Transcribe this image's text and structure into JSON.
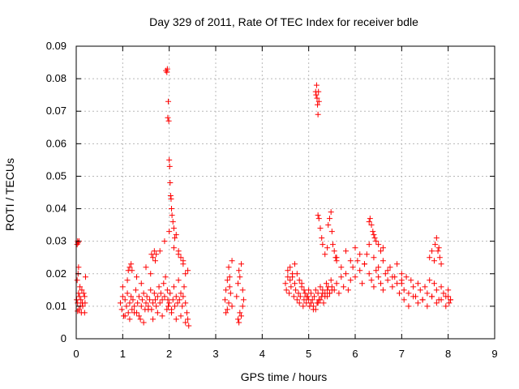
{
  "chart_data": {
    "type": "scatter",
    "title": "Day 329 of 2011, Rate Of TEC Index for receiver bdle",
    "xlabel": "GPS time / hours",
    "ylabel": "ROTI / TECUs",
    "xlim": [
      0,
      9
    ],
    "ylim": [
      0,
      0.09
    ],
    "x_ticks": [
      "0",
      "1",
      "2",
      "3",
      "4",
      "5",
      "6",
      "7",
      "8",
      "9"
    ],
    "y_ticks": [
      "0",
      "0.01",
      "0.02",
      "0.03",
      "0.04",
      "0.05",
      "0.06",
      "0.07",
      "0.08",
      "0.09"
    ],
    "grid": true,
    "legend": "none",
    "marker": "plus",
    "color": "#ff0000",
    "points": {
      "x": [
        0.01,
        0.02,
        0.03,
        0.04,
        0.05,
        0.06,
        0.07,
        0.08,
        0.09,
        0.1,
        0.11,
        0.12,
        0.13,
        0.14,
        0.16,
        0.18,
        0.2,
        0.02,
        0.03,
        0.04,
        0.06,
        0.05,
        0.03,
        0.18,
        0.19,
        0.95,
        0.98,
        1.0,
        1.02,
        1.05,
        1.08,
        1.1,
        1.12,
        1.15,
        1.18,
        1.2,
        1.22,
        1.25,
        1.28,
        1.3,
        1.32,
        1.35,
        1.38,
        1.4,
        1.42,
        1.45,
        1.48,
        1.5,
        1.52,
        1.55,
        1.58,
        1.6,
        1.62,
        1.65,
        1.68,
        1.7,
        1.72,
        1.75,
        1.78,
        1.8,
        1.82,
        1.85,
        1.88,
        1.9,
        1.92,
        1.96,
        1.97,
        1.98,
        2.0,
        2.02,
        2.05,
        2.08,
        2.1,
        2.12,
        2.15,
        2.18,
        2.2,
        2.22,
        2.25,
        2.28,
        2.3,
        2.32,
        2.35,
        2.38,
        2.4,
        2.42,
        1.93,
        1.95,
        1.96,
        1.98,
        1.97,
        1.99,
        2.0,
        2.01,
        2.02,
        2.03,
        2.04,
        2.05,
        2.06,
        2.08,
        2.1,
        2.12,
        2.15,
        2.2,
        2.25,
        2.3,
        2.35,
        1.0,
        1.1,
        1.2,
        1.3,
        1.4,
        1.5,
        1.6,
        1.7,
        1.8,
        1.9,
        2.0,
        2.1,
        2.2,
        2.3,
        2.4,
        1.05,
        1.15,
        1.25,
        1.35,
        1.45,
        1.55,
        1.65,
        1.75,
        1.85,
        1.95,
        2.05,
        2.15,
        2.25,
        2.35,
        1.12,
        1.15,
        1.18,
        1.62,
        1.65,
        1.68,
        1.72,
        3.2,
        3.22,
        3.25,
        3.28,
        3.3,
        3.32,
        3.35,
        3.22,
        3.25,
        3.28,
        3.3,
        3.35,
        3.45,
        3.48,
        3.5,
        3.52,
        3.55,
        3.58,
        3.6,
        3.48,
        3.5,
        3.52,
        3.55,
        3.58,
        4.5,
        4.52,
        4.55,
        4.58,
        4.6,
        4.62,
        4.65,
        4.68,
        4.7,
        4.72,
        4.75,
        4.78,
        4.8,
        4.82,
        4.85,
        4.88,
        4.9,
        4.92,
        4.95,
        4.98,
        5.0,
        5.02,
        5.05,
        5.08,
        5.1,
        5.12,
        5.15,
        5.18,
        5.2,
        5.22,
        5.25,
        5.28,
        5.3,
        5.32,
        5.35,
        5.38,
        5.4,
        5.42,
        5.45,
        5.48,
        5.5,
        4.55,
        4.6,
        4.65,
        4.7,
        4.75,
        4.8,
        4.85,
        4.9,
        4.95,
        5.0,
        5.05,
        5.1,
        5.15,
        5.2,
        5.25,
        5.3,
        5.35,
        5.4,
        5.45,
        5.5,
        5.15,
        5.16,
        5.17,
        5.18,
        5.19,
        5.2,
        5.21,
        5.22,
        5.2,
        5.22,
        5.25,
        5.28,
        5.3,
        5.35,
        5.4,
        5.42,
        5.45,
        5.48,
        5.5,
        5.52,
        5.55,
        5.58,
        5.6,
        5.55,
        5.6,
        5.65,
        5.7,
        5.75,
        5.8,
        5.85,
        5.9,
        5.95,
        6.0,
        6.05,
        6.1,
        6.15,
        6.2,
        6.25,
        6.3,
        6.35,
        6.4,
        6.45,
        6.5,
        6.55,
        6.6,
        6.65,
        6.7,
        6.75,
        6.8,
        6.85,
        6.9,
        6.95,
        7.0,
        5.6,
        5.7,
        5.8,
        5.9,
        6.0,
        6.1,
        6.2,
        6.3,
        6.4,
        6.5,
        6.6,
        6.7,
        6.8,
        6.9,
        7.0,
        6.3,
        6.32,
        6.35,
        6.38,
        6.4,
        6.42,
        6.45,
        6.5,
        6.55,
        6.6,
        7.0,
        7.05,
        7.1,
        7.15,
        7.2,
        7.25,
        7.3,
        7.35,
        7.4,
        7.45,
        7.5,
        7.55,
        7.6,
        7.65,
        7.7,
        7.75,
        7.8,
        7.85,
        7.9,
        7.95,
        8.0,
        8.05,
        7.05,
        7.15,
        7.25,
        7.35,
        7.45,
        7.55,
        7.65,
        7.75,
        7.85,
        7.95,
        8.0,
        8.02,
        8.05,
        7.6,
        7.65,
        7.7,
        7.72,
        7.75,
        7.78,
        7.8,
        7.82,
        7.85
      ],
      "y": [
        0.012,
        0.018,
        0.011,
        0.02,
        0.014,
        0.009,
        0.013,
        0.016,
        0.01,
        0.012,
        0.008,
        0.015,
        0.011,
        0.01,
        0.014,
        0.013,
        0.019,
        0.029,
        0.03,
        0.0295,
        0.03,
        0.022,
        0.0085,
        0.008,
        0.011,
        0.011,
        0.009,
        0.013,
        0.007,
        0.012,
        0.01,
        0.014,
        0.008,
        0.011,
        0.013,
        0.009,
        0.012,
        0.01,
        0.015,
        0.008,
        0.011,
        0.013,
        0.006,
        0.01,
        0.012,
        0.014,
        0.009,
        0.011,
        0.013,
        0.01,
        0.012,
        0.015,
        0.009,
        0.011,
        0.014,
        0.012,
        0.01,
        0.013,
        0.016,
        0.011,
        0.014,
        0.012,
        0.017,
        0.013,
        0.019,
        0.015,
        0.012,
        0.01,
        0.011,
        0.014,
        0.009,
        0.012,
        0.016,
        0.01,
        0.013,
        0.011,
        0.018,
        0.012,
        0.014,
        0.01,
        0.013,
        0.016,
        0.011,
        0.008,
        0.006,
        0.004,
        0.0825,
        0.082,
        0.083,
        0.073,
        0.068,
        0.067,
        0.055,
        0.053,
        0.048,
        0.044,
        0.043,
        0.04,
        0.038,
        0.036,
        0.034,
        0.031,
        0.032,
        0.027,
        0.025,
        0.023,
        0.02,
        0.016,
        0.018,
        0.021,
        0.019,
        0.017,
        0.022,
        0.02,
        0.024,
        0.027,
        0.03,
        0.033,
        0.028,
        0.026,
        0.024,
        0.021,
        0.007,
        0.006,
        0.008,
        0.007,
        0.005,
        0.009,
        0.006,
        0.008,
        0.007,
        0.009,
        0.008,
        0.006,
        0.007,
        0.005,
        0.021,
        0.022,
        0.023,
        0.026,
        0.025,
        0.027,
        0.026,
        0.012,
        0.015,
        0.018,
        0.022,
        0.019,
        0.014,
        0.01,
        0.008,
        0.009,
        0.011,
        0.016,
        0.024,
        0.013,
        0.017,
        0.021,
        0.019,
        0.023,
        0.015,
        0.012,
        0.006,
        0.005,
        0.008,
        0.007,
        0.01,
        0.017,
        0.015,
        0.019,
        0.014,
        0.018,
        0.016,
        0.02,
        0.013,
        0.017,
        0.015,
        0.012,
        0.014,
        0.011,
        0.013,
        0.016,
        0.01,
        0.012,
        0.014,
        0.011,
        0.013,
        0.015,
        0.01,
        0.014,
        0.012,
        0.009,
        0.013,
        0.015,
        0.011,
        0.014,
        0.012,
        0.016,
        0.013,
        0.015,
        0.011,
        0.014,
        0.017,
        0.013,
        0.016,
        0.014,
        0.018,
        0.015,
        0.021,
        0.022,
        0.019,
        0.023,
        0.02,
        0.018,
        0.017,
        0.015,
        0.013,
        0.012,
        0.011,
        0.01,
        0.009,
        0.011,
        0.012,
        0.014,
        0.013,
        0.015,
        0.014,
        0.016,
        0.076,
        0.075,
        0.078,
        0.074,
        0.072,
        0.069,
        0.076,
        0.073,
        0.038,
        0.037,
        0.034,
        0.031,
        0.029,
        0.026,
        0.028,
        0.035,
        0.037,
        0.039,
        0.033,
        0.029,
        0.027,
        0.025,
        0.024,
        0.015,
        0.017,
        0.014,
        0.019,
        0.016,
        0.02,
        0.015,
        0.018,
        0.022,
        0.019,
        0.024,
        0.021,
        0.017,
        0.023,
        0.026,
        0.02,
        0.018,
        0.016,
        0.021,
        0.019,
        0.017,
        0.015,
        0.02,
        0.018,
        0.022,
        0.016,
        0.019,
        0.017,
        0.014,
        0.018,
        0.025,
        0.022,
        0.027,
        0.024,
        0.028,
        0.026,
        0.023,
        0.029,
        0.025,
        0.022,
        0.024,
        0.021,
        0.019,
        0.023,
        0.02,
        0.036,
        0.037,
        0.035,
        0.033,
        0.032,
        0.031,
        0.03,
        0.029,
        0.027,
        0.028,
        0.017,
        0.015,
        0.019,
        0.014,
        0.018,
        0.016,
        0.013,
        0.017,
        0.015,
        0.012,
        0.016,
        0.014,
        0.018,
        0.013,
        0.017,
        0.015,
        0.012,
        0.016,
        0.014,
        0.013,
        0.015,
        0.012,
        0.012,
        0.01,
        0.013,
        0.011,
        0.012,
        0.01,
        0.013,
        0.011,
        0.012,
        0.01,
        0.013,
        0.011,
        0.012,
        0.025,
        0.027,
        0.024,
        0.029,
        0.031,
        0.027,
        0.028,
        0.025,
        0.023
      ]
    }
  }
}
